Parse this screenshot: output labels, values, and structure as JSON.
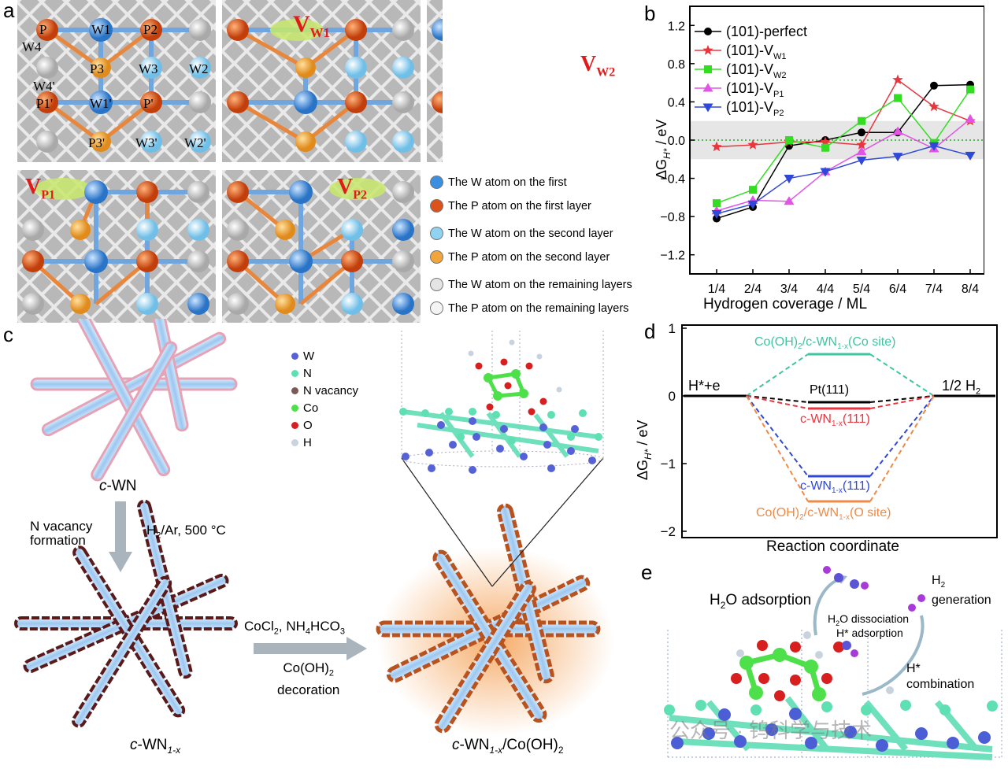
{
  "panel_a": {
    "label": "a",
    "atom_labels": [
      "P",
      "W1",
      "P2",
      "W4",
      "P3",
      "W3",
      "W2",
      "W4'",
      "P1'",
      "W1'",
      "P'",
      "P3'",
      "W3'",
      "W2'"
    ],
    "vacancies": [
      {
        "main": "V",
        "sub": "W1"
      },
      {
        "main": "V",
        "sub": "W2"
      },
      {
        "main": "V",
        "sub": "P1"
      },
      {
        "main": "V",
        "sub": "P2"
      }
    ],
    "legend": [
      {
        "text": "The W atom on the first",
        "color": "#3b8fe0"
      },
      {
        "text": "The P atom on the first layer",
        "color": "#d9531a"
      },
      {
        "text": "The W atom on the second layer",
        "color": "#8fd2f2"
      },
      {
        "text": "The P atom on the second layer",
        "color": "#f0a63c"
      },
      {
        "text": "The W atom on the remaining layers",
        "color": "#e4e4e4"
      },
      {
        "text": "The P atom on the remaining layers",
        "color": "#f4f4f4"
      }
    ]
  },
  "panel_b": {
    "label": "b",
    "y_axis_prefix": "ΔG",
    "y_axis_sub": "H*",
    "y_axis_suffix": " / eV",
    "xlabel": "Hydrogen coverage / ML"
  },
  "chart_data": {
    "type": "line",
    "categories": [
      "1/4",
      "2/4",
      "3/4",
      "4/4",
      "5/4",
      "6/4",
      "7/4",
      "8/4"
    ],
    "ylim": [
      -1.4,
      1.4
    ],
    "yticks": [
      "1.2",
      "0.8",
      "0.4",
      "0.0",
      "−0.4",
      "−0.8",
      "−1.2"
    ],
    "ytick_values": [
      1.2,
      0.8,
      0.4,
      0.0,
      -0.4,
      -0.8,
      -1.2
    ],
    "shaded_band": [
      -0.2,
      0.2
    ],
    "series": [
      {
        "name": "(101)-perfect",
        "sub": "",
        "color": "#000000",
        "marker": "circle",
        "values": [
          -0.82,
          -0.7,
          -0.06,
          0.0,
          0.08,
          0.08,
          0.57,
          0.58
        ]
      },
      {
        "name": "(101)-V",
        "sub": "W1",
        "color": "#e8363f",
        "marker": "star",
        "values": [
          -0.07,
          -0.05,
          -0.02,
          -0.02,
          -0.05,
          0.63,
          0.35,
          0.2
        ]
      },
      {
        "name": "(101)-V",
        "sub": "W2",
        "color": "#33dd22",
        "marker": "square",
        "values": [
          -0.66,
          -0.52,
          0.0,
          -0.08,
          0.2,
          0.44,
          -0.03,
          0.53
        ]
      },
      {
        "name": "(101)-V",
        "sub": "P1",
        "color": "#e254e6",
        "marker": "triangle-up",
        "values": [
          -0.74,
          -0.63,
          -0.64,
          -0.33,
          -0.12,
          0.09,
          -0.09,
          0.22
        ]
      },
      {
        "name": "(101)-V",
        "sub": "P2",
        "color": "#3048d8",
        "marker": "triangle-down",
        "values": [
          -0.77,
          -0.67,
          -0.4,
          -0.33,
          -0.21,
          -0.17,
          -0.06,
          -0.16
        ]
      }
    ]
  },
  "panel_c": {
    "label": "c",
    "wn_label_main": "c",
    "wn_label_rest": "-WN",
    "step1_title": "N vacancy formation",
    "step1_line1": "N vacancy",
    "step1_line2": "formation",
    "step1_cond_main": "H",
    "step1_cond_sub": "2",
    "step1_cond_rest": "/Ar, 500 °C",
    "wn1x_main": "c",
    "wn1x_rest": "-WN",
    "wn1x_sub": "1-x",
    "step2_reagent_a": "CoCl",
    "step2_reagent_a_sub": "2",
    "step2_reagent_b": ", NH",
    "step2_reagent_b_sub": "4",
    "step2_reagent_c": "HCO",
    "step2_reagent_c_sub": "3",
    "step2_line2_a": "Co(OH)",
    "step2_line2_sub": "2",
    "step2_line3": "decoration",
    "final_main": "c",
    "final_rest": "-WN",
    "final_sub": "1-x",
    "final_rest2": "/Co(OH)",
    "final_sub2": "2",
    "legend": [
      {
        "text": "W",
        "color": "#5561d6"
      },
      {
        "text": "N",
        "color": "#5ee0b2"
      },
      {
        "text": "N vacancy",
        "color": "#7a5a55"
      },
      {
        "text": "Co",
        "color": "#4ee04a"
      },
      {
        "text": "O",
        "color": "#d81f1f"
      },
      {
        "text": "H",
        "color": "#c9d3dd"
      }
    ]
  },
  "panel_d": {
    "label": "d",
    "y_axis_prefix": "ΔG",
    "y_axis_sub": "H*",
    "y_axis_suffix": " / eV",
    "xlabel": "Reaction coordinate",
    "yticks": [
      "1",
      "0",
      "−1",
      "−2"
    ],
    "left_state": "H*+e",
    "right_state_main": "1/2 H",
    "right_state_sub": "2",
    "levels": [
      {
        "name": "Co(OH)",
        "sub": "2",
        "rest": "/c-WN",
        "sub2": "1-x",
        "rest2": "(Co site)",
        "color": "#3fc4a2",
        "value": 0.6
      },
      {
        "name": "Pt(111)",
        "sub": "",
        "rest": "",
        "sub2": "",
        "rest2": "",
        "color": "#000000",
        "value": -0.09
      },
      {
        "name": "c-WN",
        "sub": "1-x",
        "rest": "(111)",
        "sub2": "",
        "rest2": "",
        "color": "#e8363f",
        "value": -0.18
      },
      {
        "name": "c-WN",
        "sub": "1-x",
        "rest": "(111)",
        "sub2": "",
        "rest2": "",
        "color": "#3048d8",
        "value": -1.19
      },
      {
        "name": "Co(OH)",
        "sub": "2",
        "rest": "/c-WN",
        "sub2": "1-x",
        "rest2": "(O site)",
        "color": "#ef8a46",
        "value": -1.56
      }
    ]
  },
  "panel_e": {
    "label": "e",
    "h2o_adsorption_a": "H",
    "h2o_adsorption_sub": "2",
    "h2o_adsorption_b": "O adsorption",
    "dissociation_a": "H",
    "dissociation_sub": "2",
    "dissociation_b": "O dissociation",
    "hstar_adsorption": "H* adsorption",
    "h2_gen_a": "H",
    "h2_gen_sub": "2",
    "h2_gen_b": "generation",
    "hstar_combination_a": "H*",
    "hstar_combination_b": "combination"
  },
  "watermark": "公众号 · 钨科学与技术"
}
